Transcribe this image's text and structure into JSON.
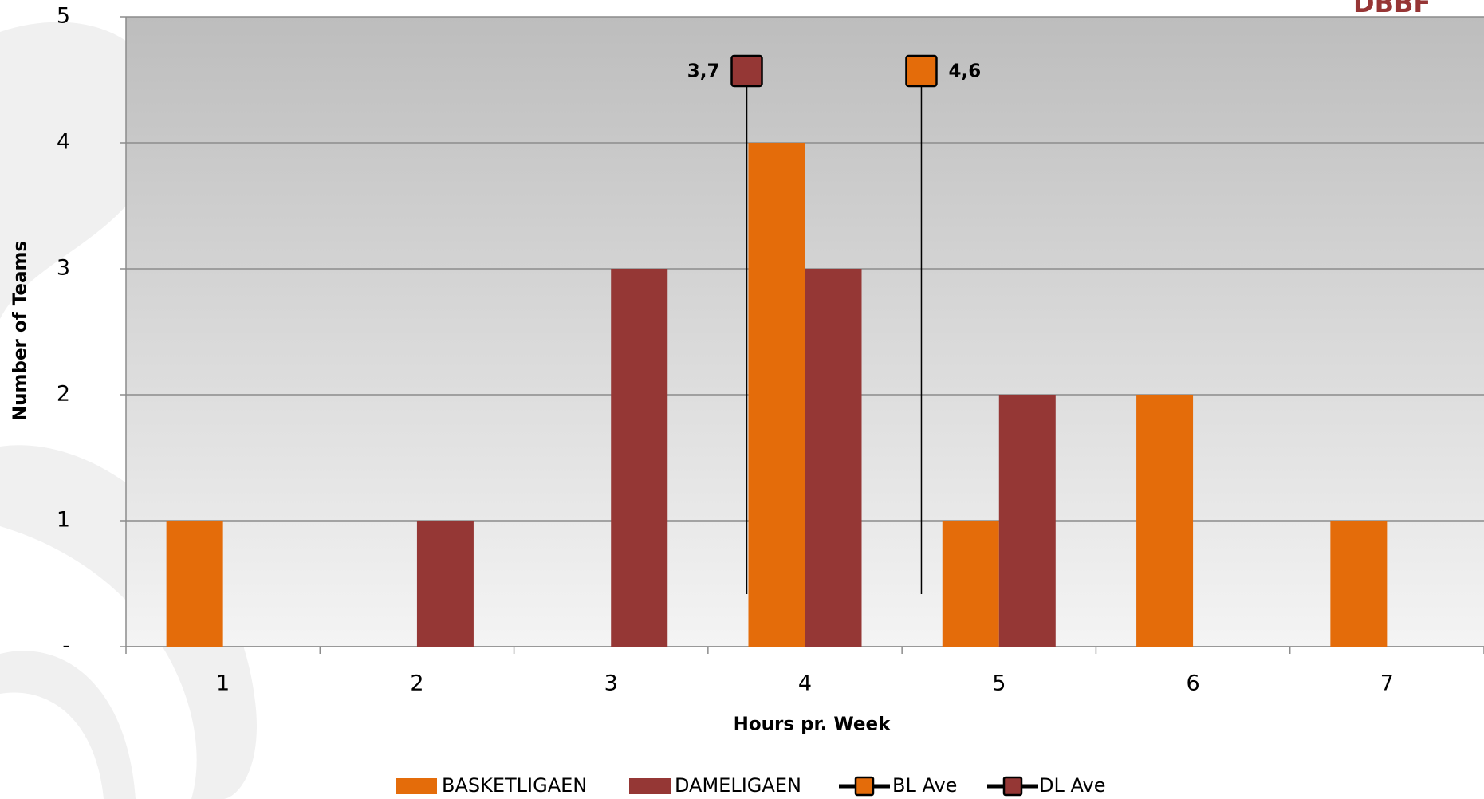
{
  "logo": "DBBF",
  "chart_data": {
    "type": "bar",
    "x_label": "Hours pr. Week",
    "y_label": "Number of Teams",
    "categories": [
      "1",
      "2",
      "3",
      "4",
      "5",
      "6",
      "7"
    ],
    "series": [
      {
        "name": "BASKETLIGAEN",
        "color": "#e46c0a",
        "values": [
          1,
          0,
          0,
          4,
          1,
          2,
          1
        ]
      },
      {
        "name": "DAMELIGAEN",
        "color": "#953735",
        "values": [
          0,
          1,
          3,
          3,
          2,
          0,
          0
        ]
      }
    ],
    "averages": [
      {
        "name": "BL Ave",
        "color": "#e46c0a",
        "value": 4.6,
        "value_label": "4,6"
      },
      {
        "name": "DL Ave",
        "color": "#953735",
        "value": 3.7,
        "value_label": "3,7"
      }
    ],
    "ylim": [
      0,
      5
    ],
    "yticks": [
      {
        "value": 0,
        "label": "-"
      },
      1,
      2,
      3,
      4,
      5
    ],
    "grid": true
  }
}
